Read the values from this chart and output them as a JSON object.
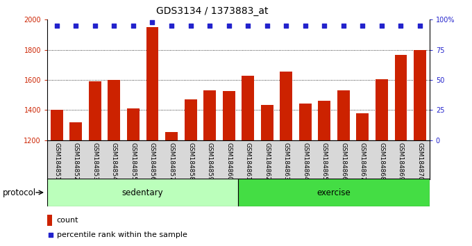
{
  "title": "GDS3134 / 1373883_at",
  "categories": [
    "GSM184851",
    "GSM184852",
    "GSM184853",
    "GSM184854",
    "GSM184855",
    "GSM184856",
    "GSM184857",
    "GSM184858",
    "GSM184859",
    "GSM184860",
    "GSM184861",
    "GSM184862",
    "GSM184863",
    "GSM184864",
    "GSM184865",
    "GSM184866",
    "GSM184867",
    "GSM184868",
    "GSM184869",
    "GSM184870"
  ],
  "bar_values": [
    1400,
    1320,
    1590,
    1600,
    1410,
    1950,
    1255,
    1470,
    1530,
    1525,
    1630,
    1435,
    1655,
    1445,
    1460,
    1530,
    1380,
    1605,
    1765,
    1800
  ],
  "percentile_values": [
    95,
    95,
    95,
    95,
    95,
    98,
    95,
    95,
    95,
    95,
    95,
    95,
    95,
    95,
    95,
    95,
    95,
    95,
    95,
    95
  ],
  "bar_color": "#cc2200",
  "percentile_color": "#2222cc",
  "ylim_left": [
    1200,
    2000
  ],
  "ylim_right": [
    0,
    100
  ],
  "yticks_left": [
    1200,
    1400,
    1600,
    1800,
    2000
  ],
  "yticks_right": [
    0,
    25,
    50,
    75,
    100
  ],
  "ytick_labels_right": [
    "0",
    "25",
    "50",
    "75",
    "100%"
  ],
  "grid_lines": [
    1400,
    1600,
    1800
  ],
  "groups": [
    {
      "label": "sedentary",
      "start": 0,
      "end": 10,
      "color": "#bbffbb"
    },
    {
      "label": "exercise",
      "start": 10,
      "end": 20,
      "color": "#44dd44"
    }
  ],
  "protocol_label": "protocol",
  "legend_count_label": "count",
  "legend_percentile_label": "percentile rank within the sample",
  "plot_bg_color": "#ffffff",
  "xlabel_bg_color": "#d8d8d8",
  "title_fontsize": 10,
  "tick_fontsize": 7,
  "label_fontsize": 6.5
}
